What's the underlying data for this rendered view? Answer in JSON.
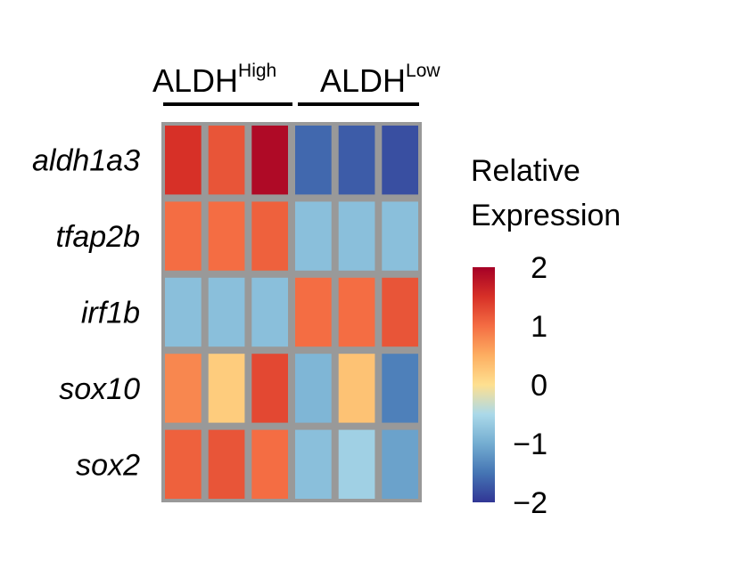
{
  "chart_data": {
    "type": "heatmap",
    "rows": [
      "aldh1a3",
      "tfap2b",
      "irf1b",
      "sox10",
      "sox2"
    ],
    "groups": [
      {
        "name": "ALDH",
        "superscript": "High",
        "columns": 3
      },
      {
        "name": "ALDH",
        "superscript": "Low",
        "columns": 3
      }
    ],
    "values": [
      [
        1.5,
        1.2,
        1.9,
        -1.6,
        -1.7,
        -1.8
      ],
      [
        1.0,
        1.0,
        1.1,
        -0.8,
        -0.8,
        -0.8
      ],
      [
        -0.8,
        -0.8,
        -0.8,
        1.0,
        1.0,
        1.2
      ],
      [
        0.8,
        0.2,
        1.3,
        -0.9,
        0.3,
        -1.4
      ],
      [
        1.1,
        1.2,
        1.0,
        -0.8,
        -0.6,
        -1.1
      ]
    ],
    "colorbar": {
      "title": [
        "Relative",
        "Expression"
      ],
      "min": -2,
      "max": 2,
      "ticks": [
        2,
        1,
        0,
        -1,
        -2
      ],
      "tick_labels": [
        "2",
        "1",
        "0",
        "−1",
        "−2"
      ],
      "colors": [
        "#313695",
        "#4575b4",
        "#74add1",
        "#abd9e9",
        "#fee090",
        "#fdae61",
        "#f46d43",
        "#d73027",
        "#a50026"
      ]
    },
    "grid_color": "#999999"
  }
}
